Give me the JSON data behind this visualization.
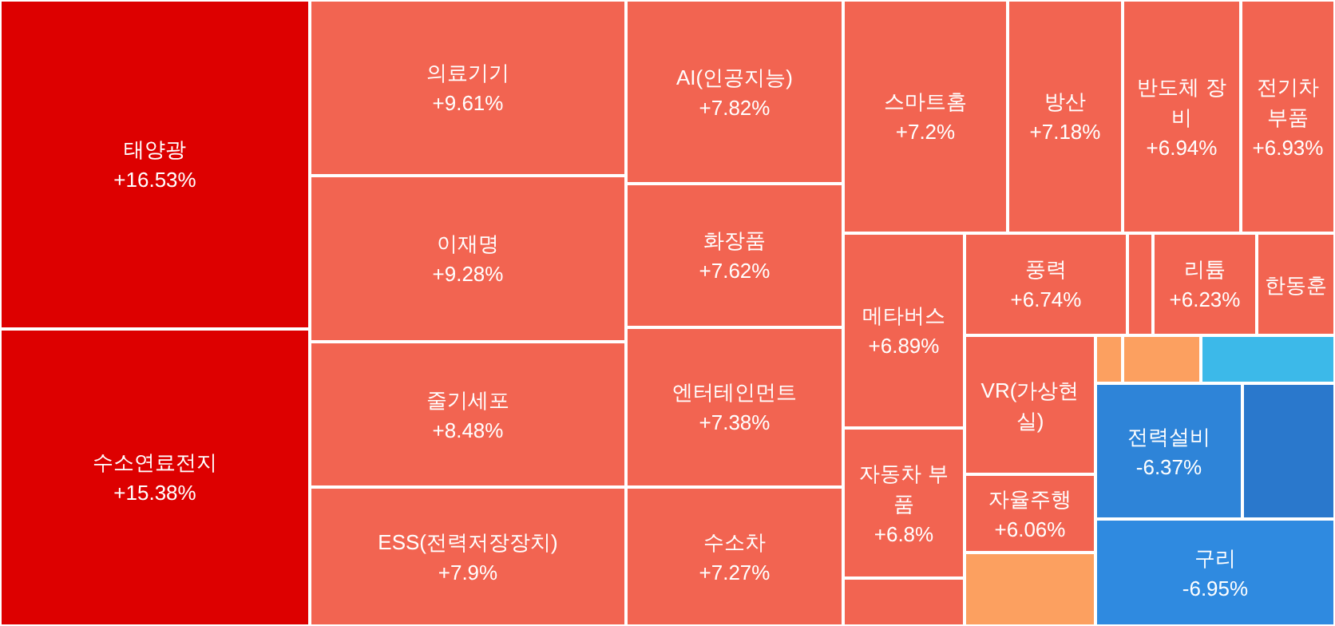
{
  "chart_data": {
    "type": "other",
    "categories": [
      "태양광",
      "수소연료전지",
      "의료기기",
      "이재명",
      "줄기세포",
      "ESS(전력저장장치)",
      "AI(인공지능)",
      "화장품",
      "엔터테인먼트",
      "수소차",
      "스마트홈",
      "방산",
      "반도체 장비",
      "전기차 부품",
      "메타버스",
      "자동차 부품",
      null,
      "풍력",
      null,
      "리튬",
      "한동훈",
      "VR(가상현실)",
      "자율주행",
      null,
      null,
      null,
      null,
      "전력설비",
      null,
      "구리"
    ],
    "values": [
      16.53,
      15.38,
      9.61,
      9.28,
      8.48,
      7.9,
      7.82,
      7.62,
      7.38,
      7.27,
      7.2,
      7.18,
      6.94,
      6.93,
      6.89,
      6.8,
      null,
      6.74,
      null,
      6.23,
      null,
      null,
      6.06,
      null,
      null,
      null,
      null,
      -6.37,
      null,
      -6.95
    ],
    "value_labels": [
      "+16.53%",
      "+15.38%",
      "+9.61%",
      "+9.28%",
      "+8.48%",
      "+7.9%",
      "+7.82%",
      "+7.62%",
      "+7.38%",
      "+7.27%",
      "+7.2%",
      "+7.18%",
      "+6.94%",
      "+6.93%",
      "+6.89%",
      "+6.8%",
      null,
      "+6.74%",
      null,
      "+6.23%",
      null,
      null,
      "+6.06%",
      null,
      null,
      null,
      null,
      "-6.37%",
      null,
      "-6.95%"
    ],
    "colors": [
      "#dd0000",
      "#dd0000",
      "#f26451",
      "#f26451",
      "#f26451",
      "#f26451",
      "#f26451",
      "#f26451",
      "#f26451",
      "#f26451",
      "#f26451",
      "#f26451",
      "#f26451",
      "#f26451",
      "#f26451",
      "#f26451",
      "#f26451",
      "#f26451",
      "#f26451",
      "#f26451",
      "#f26451",
      "#f26451",
      "#f26451",
      "#fca060",
      "#fca060",
      "#fca060",
      "#3cb9e9",
      "#2e84d8",
      "#2a78cc",
      "#2f8ae0"
    ]
  }
}
